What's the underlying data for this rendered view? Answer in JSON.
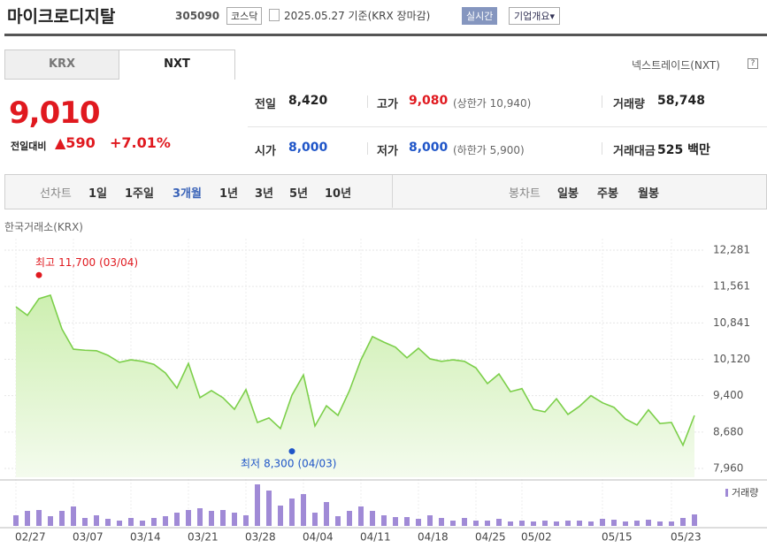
{
  "header": {
    "name": "마이크로디지탈",
    "code": "305090",
    "market": "코스닥",
    "date": "2025.05.27 기준(KRX 장마감)",
    "realtime": "실시간",
    "company": "기업개요▾"
  },
  "tabs": [
    "KRX",
    "NXT"
  ],
  "nxt_label": "넥스트레이드(NXT)",
  "help": "?",
  "quote": {
    "price": "9,010",
    "change_label": "전일대비",
    "change": "▲590",
    "change_pct": "+7.01%",
    "rows": [
      [
        {
          "label": "전일",
          "value": "8,420"
        },
        {
          "label": "고가",
          "value": "9,080",
          "extra": "(상한가 10,940)"
        },
        {
          "label": "거래량",
          "value": "58,748"
        }
      ],
      [
        {
          "label": "시가",
          "value": "8,000"
        },
        {
          "label": "저가",
          "value": "8,000",
          "extra": "(하한가 5,900)"
        },
        {
          "label": "거래대금",
          "value": "525 백만"
        }
      ]
    ]
  },
  "periods": {
    "line_label": "선차트",
    "line": [
      "1일",
      "1주일",
      "3개월",
      "1년",
      "3년",
      "5년",
      "10년"
    ],
    "selected": 2,
    "candle_label": "봉차트",
    "candle": [
      "일봉",
      "주봉",
      "월봉"
    ]
  },
  "chart_source": "한국거래소(KRX)",
  "chart_data": [
    {
      "type": "area",
      "color": "#7ccf4a",
      "categories": [
        "02/27",
        null,
        null,
        null,
        null,
        "03/07",
        null,
        null,
        null,
        null,
        "03/14",
        null,
        null,
        null,
        null,
        "03/21",
        null,
        null,
        null,
        null,
        "03/28",
        null,
        null,
        null,
        null,
        "04/04",
        null,
        null,
        null,
        null,
        "04/11",
        null,
        null,
        null,
        null,
        "04/18",
        null,
        null,
        null,
        null,
        "04/25",
        null,
        null,
        null,
        "05/02",
        null,
        null,
        null,
        null,
        null,
        null,
        "05/15",
        null,
        null,
        null,
        null,
        null,
        "05/23",
        null,
        null
      ],
      "values": [
        11160,
        10990,
        11320,
        11390,
        10720,
        10320,
        10300,
        10290,
        10200,
        10060,
        10110,
        10080,
        10020,
        9850,
        9550,
        10040,
        9360,
        9500,
        9360,
        9130,
        9520,
        8870,
        8960,
        8750,
        9410,
        9810,
        8800,
        9200,
        9010,
        9500,
        10110,
        10570,
        10460,
        10360,
        10150,
        10340,
        10130,
        10080,
        10110,
        10080,
        9950,
        9640,
        9830,
        9480,
        9540,
        9130,
        9080,
        9340,
        9030,
        9190,
        9400,
        9260,
        9170,
        8940,
        8820,
        9120,
        8850,
        8870,
        8420,
        9010
      ],
      "ylim": [
        7960,
        12281
      ],
      "yticks": [
        {
          "value": 12281,
          "label": "12,281"
        },
        {
          "value": 11561,
          "label": "11,561"
        },
        {
          "value": 10841,
          "label": "10,841"
        },
        {
          "value": 10120,
          "label": "10,120"
        },
        {
          "value": 9400,
          "label": "9,400"
        },
        {
          "value": 8680,
          "label": "8,680"
        },
        {
          "value": 7960,
          "label": "7,960"
        }
      ],
      "grid": true,
      "annotations": [
        {
          "label": "최고",
          "value": 11700,
          "value_label": "11,700",
          "date": "(03/04)",
          "color": "#e0191f"
        },
        {
          "label": "최저",
          "value": 8300,
          "value_label": "8,300",
          "date": "(04/03)",
          "color": "#1f55c8"
        }
      ]
    },
    {
      "type": "bar",
      "name": "거래량",
      "color": "#a08ad6",
      "ylim": [
        0,
        200000
      ],
      "values": [
        48000,
        68000,
        72000,
        44000,
        68000,
        88000,
        36000,
        48000,
        32000,
        24000,
        36000,
        24000,
        36000,
        44000,
        60000,
        72000,
        80000,
        68000,
        72000,
        60000,
        48000,
        188000,
        160000,
        92000,
        124000,
        144000,
        60000,
        108000,
        44000,
        68000,
        88000,
        68000,
        48000,
        40000,
        40000,
        32000,
        48000,
        36000,
        24000,
        36000,
        24000,
        24000,
        32000,
        20000,
        24000,
        20000,
        24000,
        20000,
        24000,
        24000,
        20000,
        32000,
        28000,
        20000,
        24000,
        28000,
        20000,
        20000,
        36000,
        52000
      ]
    }
  ]
}
